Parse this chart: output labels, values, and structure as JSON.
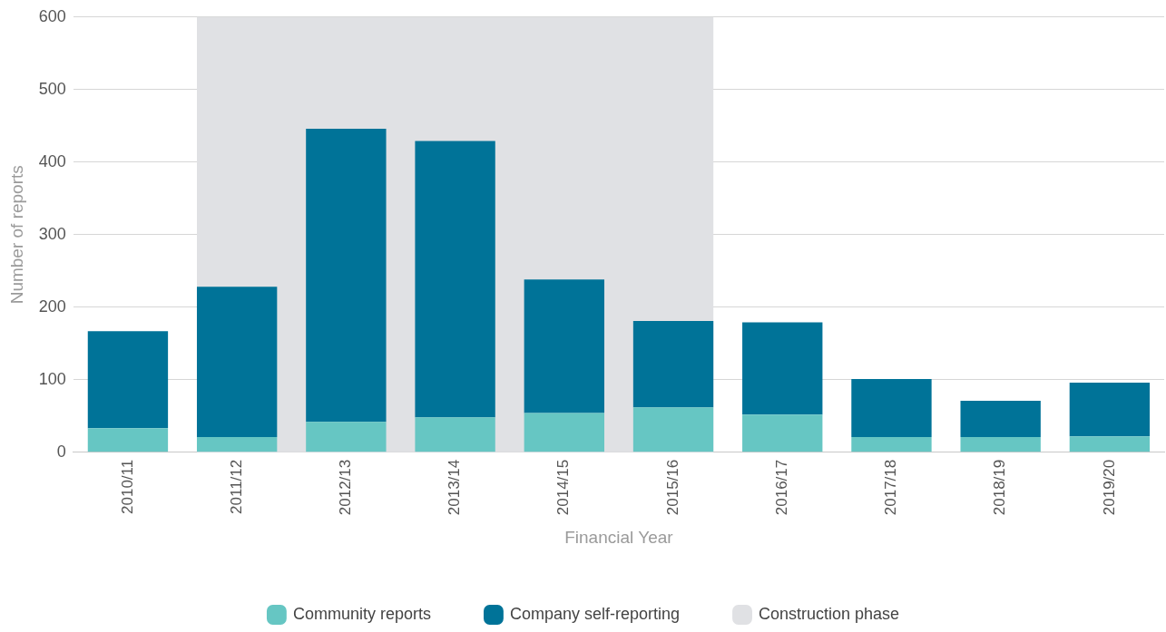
{
  "chart_data": {
    "type": "bar",
    "stacked": true,
    "xlabel": "Financial Year",
    "ylabel": "Number of reports",
    "categories": [
      "2010/11",
      "2011/12",
      "2012/13",
      "2013/14",
      "2014/15",
      "2015/16",
      "2016/17",
      "2017/18",
      "2018/19",
      "2019/20"
    ],
    "series": [
      {
        "name": "Community reports",
        "color": "#66c6c3",
        "values": [
          33,
          21,
          42,
          48,
          54,
          62,
          52,
          21,
          21,
          22
        ]
      },
      {
        "name": "Company self-reporting",
        "color": "#007398",
        "values": [
          134,
          207,
          404,
          381,
          184,
          119,
          127,
          80,
          50,
          74
        ]
      }
    ],
    "bands": [
      {
        "axis": "x",
        "from": "2011/12",
        "to": "2015/16",
        "label": "Construction phase",
        "color": "#e0e1e4"
      }
    ],
    "ylim": [
      0,
      600
    ],
    "yticks": [
      0,
      100,
      200,
      300,
      400,
      500,
      600
    ],
    "grid": "y",
    "legend": "bottom"
  }
}
